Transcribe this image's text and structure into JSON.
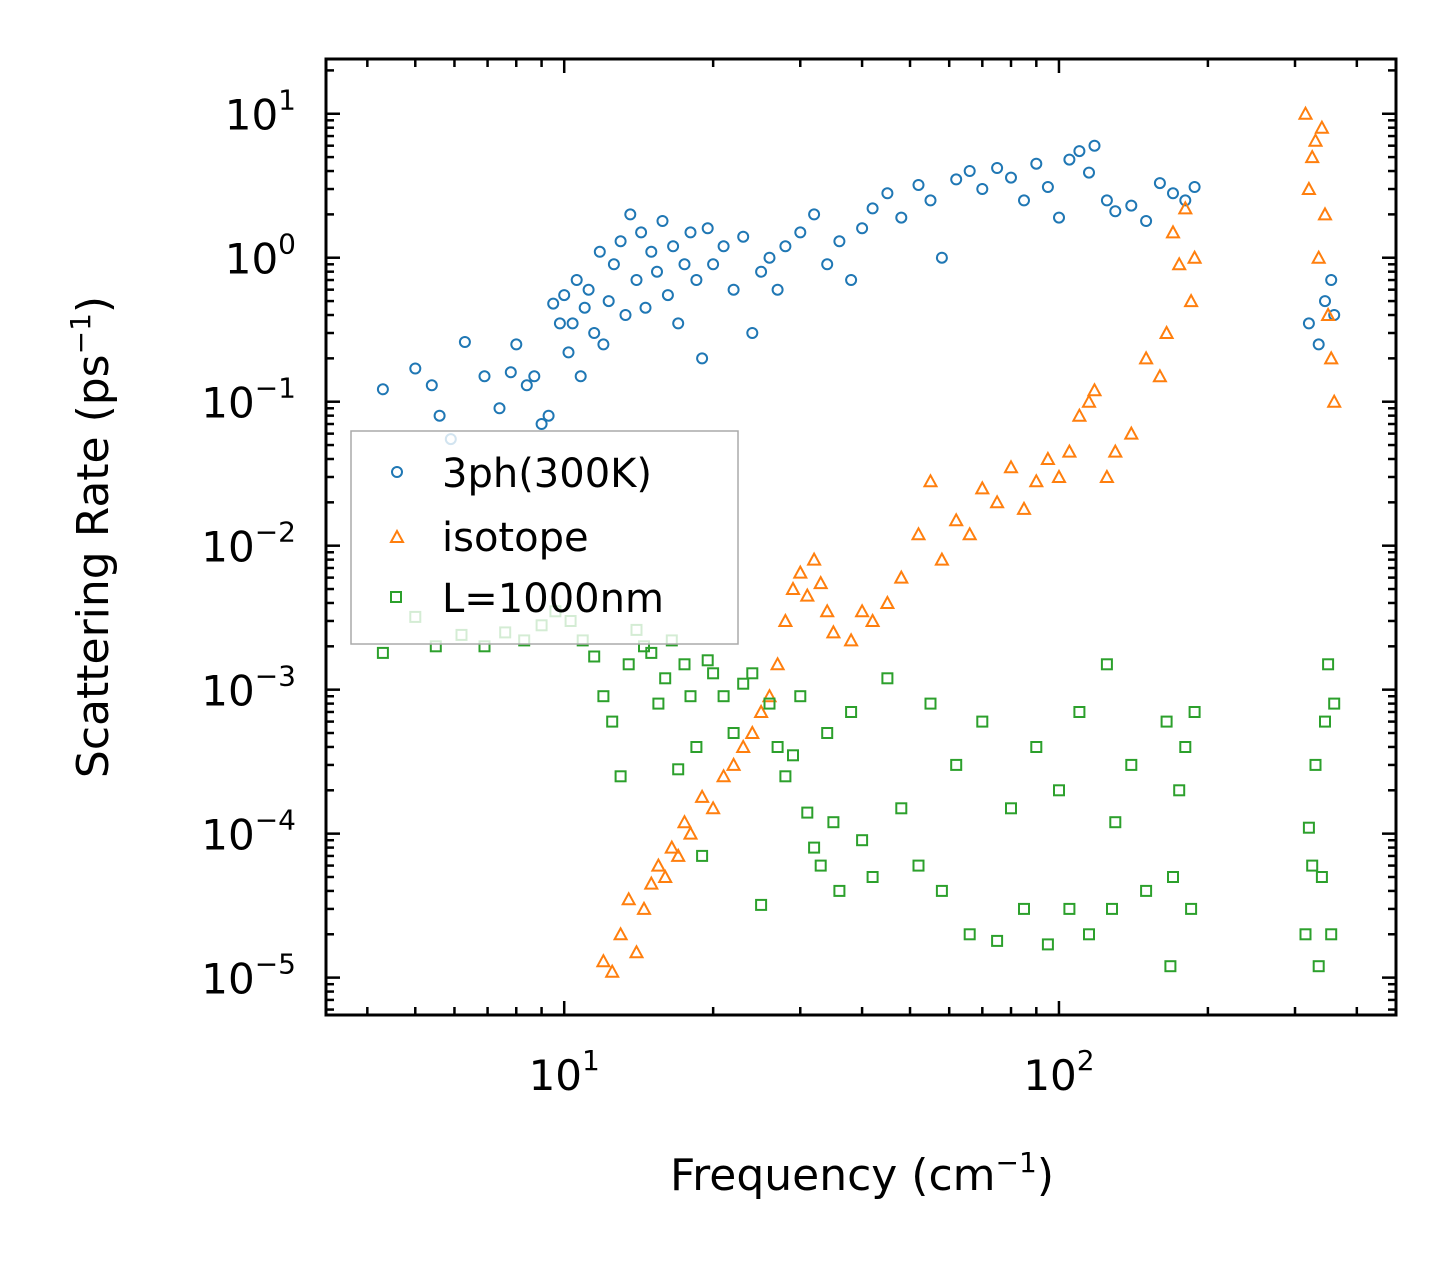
{
  "chart_data": {
    "type": "scatter",
    "xlabel": "Frequency (cm",
    "xlabel_sup": "−1",
    "xlabel_tail": ")",
    "ylabel": "Scattering Rate (ps",
    "ylabel_sup": "−1",
    "ylabel_tail": ")",
    "xscale": "log",
    "yscale": "log",
    "xlim": [
      3.3,
      480
    ],
    "ylim": [
      5.5e-06,
      24
    ],
    "x_ticks": [
      {
        "value": 10,
        "base": "10",
        "exp": "1"
      },
      {
        "value": 100,
        "base": "10",
        "exp": "2"
      }
    ],
    "y_ticks": [
      {
        "value": 10,
        "base": "10",
        "exp": "1"
      },
      {
        "value": 1,
        "base": "10",
        "exp": "0"
      },
      {
        "value": 0.1,
        "base": "10",
        "exp": "−1"
      },
      {
        "value": 0.01,
        "base": "10",
        "exp": "−2"
      },
      {
        "value": 0.001,
        "base": "10",
        "exp": "−3"
      },
      {
        "value": 0.0001,
        "base": "10",
        "exp": "−4"
      },
      {
        "value": 1e-05,
        "base": "10",
        "exp": "−5"
      }
    ],
    "legend_position": "center-left",
    "series": [
      {
        "name": "3ph(300K)",
        "marker": "circle",
        "color": "#1f77b4",
        "points": [
          [
            4.3,
            0.122
          ],
          [
            5.0,
            0.17
          ],
          [
            5.4,
            0.13
          ],
          [
            5.6,
            0.08
          ],
          [
            5.9,
            0.055
          ],
          [
            6.3,
            0.26
          ],
          [
            6.9,
            0.15
          ],
          [
            7.4,
            0.09
          ],
          [
            7.8,
            0.16
          ],
          [
            8.0,
            0.25
          ],
          [
            8.4,
            0.13
          ],
          [
            8.7,
            0.15
          ],
          [
            9.0,
            0.07
          ],
          [
            9.3,
            0.08
          ],
          [
            9.5,
            0.48
          ],
          [
            9.8,
            0.35
          ],
          [
            10.0,
            0.55
          ],
          [
            10.2,
            0.22
          ],
          [
            10.4,
            0.35
          ],
          [
            10.6,
            0.7
          ],
          [
            10.8,
            0.15
          ],
          [
            11.0,
            0.45
          ],
          [
            11.2,
            0.6
          ],
          [
            11.5,
            0.3
          ],
          [
            11.8,
            1.1
          ],
          [
            12.0,
            0.25
          ],
          [
            12.3,
            0.5
          ],
          [
            12.6,
            0.9
          ],
          [
            13.0,
            1.3
          ],
          [
            13.3,
            0.4
          ],
          [
            13.6,
            2.0
          ],
          [
            14.0,
            0.7
          ],
          [
            14.3,
            1.5
          ],
          [
            14.6,
            0.45
          ],
          [
            15.0,
            1.1
          ],
          [
            15.4,
            0.8
          ],
          [
            15.8,
            1.8
          ],
          [
            16.2,
            0.55
          ],
          [
            16.6,
            1.2
          ],
          [
            17.0,
            0.35
          ],
          [
            17.5,
            0.9
          ],
          [
            18.0,
            1.5
          ],
          [
            18.5,
            0.7
          ],
          [
            19.0,
            0.2
          ],
          [
            19.5,
            1.6
          ],
          [
            20.0,
            0.9
          ],
          [
            21.0,
            1.2
          ],
          [
            22.0,
            0.6
          ],
          [
            23.0,
            1.4
          ],
          [
            24.0,
            0.3
          ],
          [
            25.0,
            0.8
          ],
          [
            26.0,
            1.0
          ],
          [
            27.0,
            0.6
          ],
          [
            28.0,
            1.2
          ],
          [
            30.0,
            1.5
          ],
          [
            32.0,
            2.0
          ],
          [
            34.0,
            0.9
          ],
          [
            36.0,
            1.3
          ],
          [
            38.0,
            0.7
          ],
          [
            40.0,
            1.6
          ],
          [
            42.0,
            2.2
          ],
          [
            45.0,
            2.8
          ],
          [
            48.0,
            1.9
          ],
          [
            52.0,
            3.2
          ],
          [
            55.0,
            2.5
          ],
          [
            58.0,
            1.0
          ],
          [
            62.0,
            3.5
          ],
          [
            66.0,
            4.0
          ],
          [
            70.0,
            3.0
          ],
          [
            75.0,
            4.2
          ],
          [
            80.0,
            3.6
          ],
          [
            85.0,
            2.5
          ],
          [
            90.0,
            4.5
          ],
          [
            95.0,
            3.1
          ],
          [
            100.0,
            1.9
          ],
          [
            105.0,
            4.8
          ],
          [
            110.0,
            5.5
          ],
          [
            115.0,
            3.9
          ],
          [
            118.0,
            6.0
          ],
          [
            125.0,
            2.5
          ],
          [
            130.0,
            2.1
          ],
          [
            140.0,
            2.3
          ],
          [
            150.0,
            1.8
          ],
          [
            160.0,
            3.3
          ],
          [
            170.0,
            2.8
          ],
          [
            180.0,
            2.5
          ],
          [
            188.0,
            3.1
          ],
          [
            320.0,
            0.35
          ],
          [
            335.0,
            0.25
          ],
          [
            345.0,
            0.5
          ],
          [
            355.0,
            0.7
          ],
          [
            360.0,
            0.4
          ]
        ]
      },
      {
        "name": "isotope",
        "marker": "triangle",
        "color": "#ff7f0e",
        "points": [
          [
            12.0,
            1.3e-05
          ],
          [
            12.5,
            1.1e-05
          ],
          [
            13.0,
            2e-05
          ],
          [
            13.5,
            3.5e-05
          ],
          [
            14.0,
            1.5e-05
          ],
          [
            14.5,
            3e-05
          ],
          [
            15.0,
            4.5e-05
          ],
          [
            15.5,
            6e-05
          ],
          [
            16.0,
            5e-05
          ],
          [
            16.5,
            8e-05
          ],
          [
            17.0,
            7e-05
          ],
          [
            17.5,
            0.00012
          ],
          [
            18.0,
            0.0001
          ],
          [
            19.0,
            0.00018
          ],
          [
            20.0,
            0.00015
          ],
          [
            21.0,
            0.00025
          ],
          [
            22.0,
            0.0003
          ],
          [
            23.0,
            0.0004
          ],
          [
            24.0,
            0.0005
          ],
          [
            25.0,
            0.0007
          ],
          [
            26.0,
            0.0009
          ],
          [
            27.0,
            0.0015
          ],
          [
            28.0,
            0.003
          ],
          [
            29.0,
            0.005
          ],
          [
            30.0,
            0.0065
          ],
          [
            31.0,
            0.0045
          ],
          [
            32.0,
            0.008
          ],
          [
            33.0,
            0.0055
          ],
          [
            34.0,
            0.0035
          ],
          [
            35.0,
            0.0025
          ],
          [
            38.0,
            0.0022
          ],
          [
            40.0,
            0.0035
          ],
          [
            42.0,
            0.003
          ],
          [
            45.0,
            0.004
          ],
          [
            48.0,
            0.006
          ],
          [
            52.0,
            0.012
          ],
          [
            55.0,
            0.028
          ],
          [
            58.0,
            0.008
          ],
          [
            62.0,
            0.015
          ],
          [
            66.0,
            0.012
          ],
          [
            70.0,
            0.025
          ],
          [
            75.0,
            0.02
          ],
          [
            80.0,
            0.035
          ],
          [
            85.0,
            0.018
          ],
          [
            90.0,
            0.028
          ],
          [
            95.0,
            0.04
          ],
          [
            100.0,
            0.03
          ],
          [
            105.0,
            0.045
          ],
          [
            110.0,
            0.08
          ],
          [
            115.0,
            0.1
          ],
          [
            118.0,
            0.12
          ],
          [
            125.0,
            0.03
          ],
          [
            130.0,
            0.045
          ],
          [
            140.0,
            0.06
          ],
          [
            150.0,
            0.2
          ],
          [
            160.0,
            0.15
          ],
          [
            165.0,
            0.3
          ],
          [
            170.0,
            1.5
          ],
          [
            175.0,
            0.9
          ],
          [
            180.0,
            2.2
          ],
          [
            185.0,
            0.5
          ],
          [
            188.0,
            1.0
          ],
          [
            315.0,
            10.0
          ],
          [
            320.0,
            3.0
          ],
          [
            325.0,
            5.0
          ],
          [
            330.0,
            6.5
          ],
          [
            335.0,
            1.0
          ],
          [
            340.0,
            8.0
          ],
          [
            345.0,
            2.0
          ],
          [
            350.0,
            0.4
          ],
          [
            355.0,
            0.2
          ],
          [
            360.0,
            0.1
          ]
        ]
      },
      {
        "name": "L=1000nm",
        "marker": "square",
        "color": "#2ca02c",
        "points": [
          [
            4.3,
            0.0018
          ],
          [
            5.0,
            0.0032
          ],
          [
            5.5,
            0.002
          ],
          [
            6.2,
            0.0024
          ],
          [
            6.9,
            0.002
          ],
          [
            7.6,
            0.0025
          ],
          [
            8.3,
            0.0022
          ],
          [
            9.0,
            0.0028
          ],
          [
            9.6,
            0.0035
          ],
          [
            10.3,
            0.003
          ],
          [
            10.9,
            0.0022
          ],
          [
            11.5,
            0.0017
          ],
          [
            12.0,
            0.0009
          ],
          [
            12.5,
            0.0006
          ],
          [
            13.0,
            0.00025
          ],
          [
            13.5,
            0.0015
          ],
          [
            14.0,
            0.0026
          ],
          [
            14.5,
            0.002
          ],
          [
            15.0,
            0.0018
          ],
          [
            15.5,
            0.0008
          ],
          [
            16.0,
            0.0012
          ],
          [
            16.5,
            0.0022
          ],
          [
            17.0,
            0.00028
          ],
          [
            17.5,
            0.0015
          ],
          [
            18.0,
            0.0009
          ],
          [
            18.5,
            0.0004
          ],
          [
            19.0,
            7e-05
          ],
          [
            19.5,
            0.0016
          ],
          [
            20.0,
            0.0013
          ],
          [
            21.0,
            0.0009
          ],
          [
            22.0,
            0.0005
          ],
          [
            23.0,
            0.0011
          ],
          [
            24.0,
            0.0013
          ],
          [
            25.0,
            3.2e-05
          ],
          [
            26.0,
            0.0008
          ],
          [
            27.0,
            0.0004
          ],
          [
            28.0,
            0.00025
          ],
          [
            29.0,
            0.00035
          ],
          [
            30.0,
            0.0009
          ],
          [
            31.0,
            0.00014
          ],
          [
            32.0,
            8e-05
          ],
          [
            33.0,
            6e-05
          ],
          [
            34.0,
            0.0005
          ],
          [
            35.0,
            0.00012
          ],
          [
            36.0,
            4e-05
          ],
          [
            38.0,
            0.0007
          ],
          [
            40.0,
            9e-05
          ],
          [
            42.0,
            5e-05
          ],
          [
            45.0,
            0.0012
          ],
          [
            48.0,
            0.00015
          ],
          [
            52.0,
            6e-05
          ],
          [
            55.0,
            0.0008
          ],
          [
            58.0,
            4e-05
          ],
          [
            62.0,
            0.0003
          ],
          [
            66.0,
            2e-05
          ],
          [
            70.0,
            0.0006
          ],
          [
            75.0,
            1.8e-05
          ],
          [
            80.0,
            0.00015
          ],
          [
            85.0,
            3e-05
          ],
          [
            90.0,
            0.0004
          ],
          [
            95.0,
            1.7e-05
          ],
          [
            100.0,
            0.0002
          ],
          [
            105.0,
            3e-05
          ],
          [
            110.0,
            0.0007
          ],
          [
            115.0,
            2e-05
          ],
          [
            125.0,
            0.0015
          ],
          [
            128.0,
            3e-05
          ],
          [
            130.0,
            0.00012
          ],
          [
            140.0,
            0.0003
          ],
          [
            150.0,
            4e-05
          ],
          [
            165.0,
            0.0006
          ],
          [
            168.0,
            1.2e-05
          ],
          [
            170.0,
            5e-05
          ],
          [
            175.0,
            0.0002
          ],
          [
            180.0,
            0.0004
          ],
          [
            185.0,
            3e-05
          ],
          [
            188.0,
            0.0007
          ],
          [
            315.0,
            2e-05
          ],
          [
            320.0,
            0.00011
          ],
          [
            325.0,
            6e-05
          ],
          [
            330.0,
            0.0003
          ],
          [
            335.0,
            1.2e-05
          ],
          [
            340.0,
            5e-05
          ],
          [
            345.0,
            0.0006
          ],
          [
            350.0,
            0.0015
          ],
          [
            355.0,
            2e-05
          ],
          [
            360.0,
            0.0008
          ]
        ]
      }
    ]
  }
}
